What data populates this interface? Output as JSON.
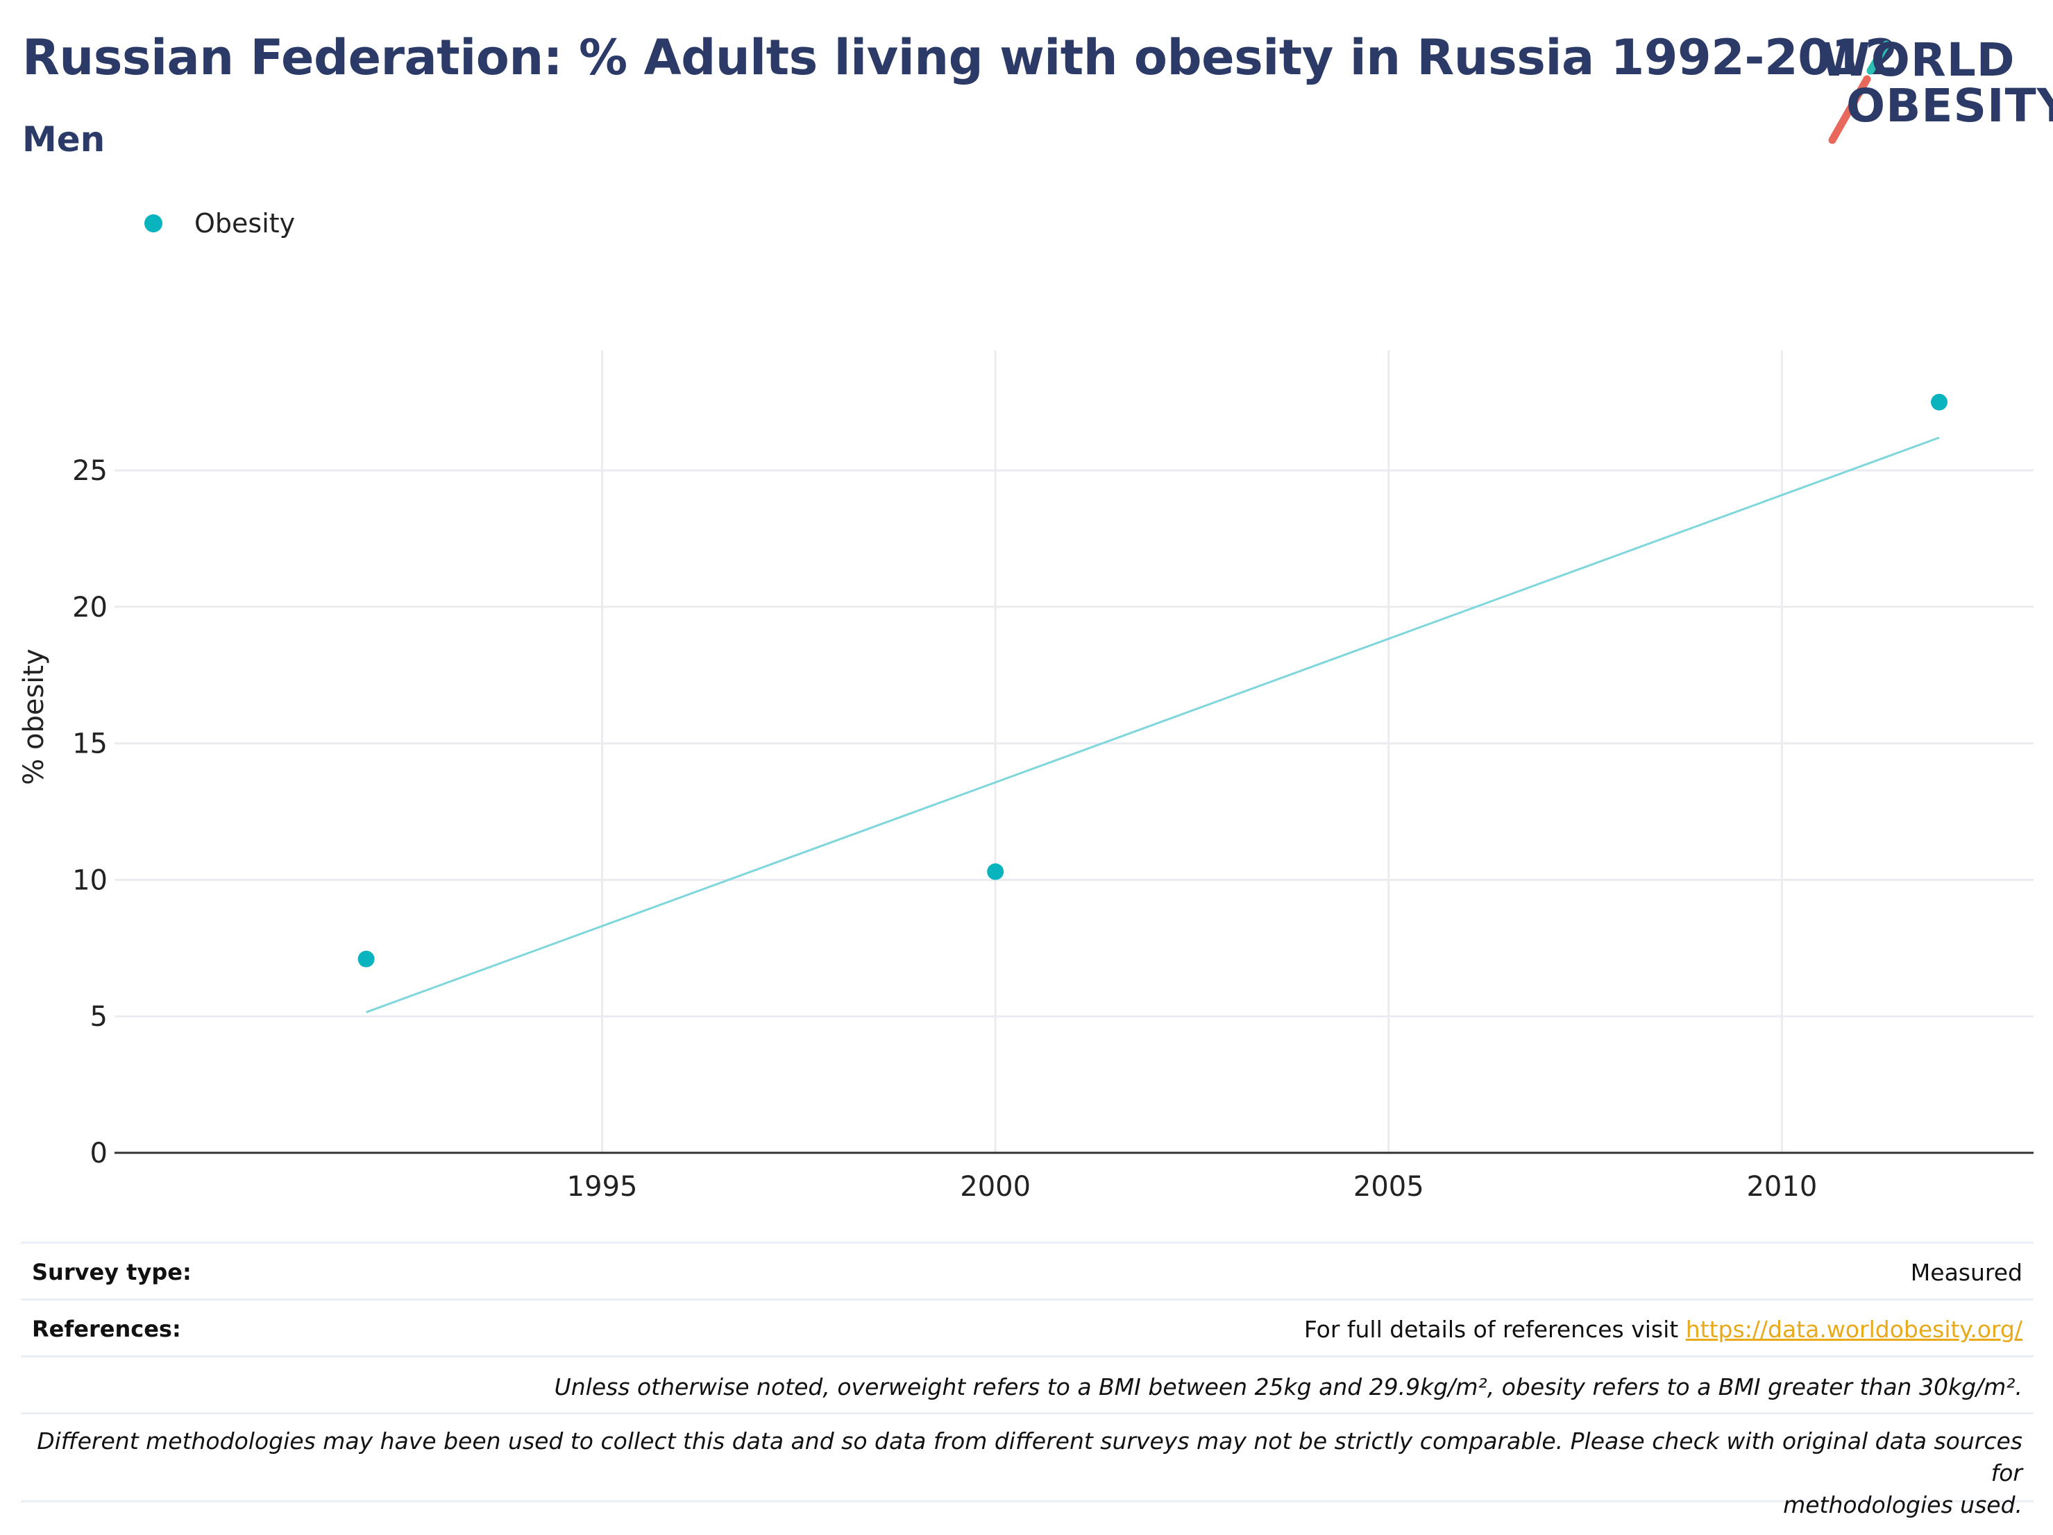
{
  "header": {
    "title": "Russian Federation: % Adults living with obesity in Russia 1992-2012",
    "subtitle": "Men"
  },
  "logo": {
    "line1": "WORLD",
    "line2": "OBESITY",
    "accent_teal": "#2bbfb3",
    "accent_red": "#e8695b"
  },
  "legend": {
    "items": [
      {
        "label": "Obesity",
        "color": "#0ab4be"
      }
    ]
  },
  "chart_data": {
    "type": "scatter",
    "title": "Russian Federation: % Adults living with obesity in Russia 1992-2012",
    "subtitle": "Men",
    "xlabel": "",
    "ylabel": "% obesity",
    "x_ticks": [
      1995,
      2000,
      2005,
      2010
    ],
    "y_ticks": [
      0,
      5,
      10,
      15,
      20,
      25
    ],
    "xlim": [
      1988.8,
      2013.2
    ],
    "ylim": [
      0,
      29.4
    ],
    "grid": true,
    "legend_position": "top-left",
    "series": [
      {
        "name": "Obesity",
        "color": "#0ab4be",
        "points": [
          {
            "x": 1992,
            "y": 7.1
          },
          {
            "x": 2000,
            "y": 10.3
          },
          {
            "x": 2012,
            "y": 27.5
          }
        ]
      }
    ],
    "trendline": {
      "color": "#7fd7dc",
      "points": [
        {
          "x": 1992,
          "y": 5.15
        },
        {
          "x": 2012,
          "y": 26.2
        }
      ]
    }
  },
  "footer": {
    "survey_type_label": "Survey type:",
    "survey_type_value": "Measured",
    "references_label": "References:",
    "references_text": "For full details of references visit ",
    "references_link": "https://data.worldobesity.org/",
    "note1": "Unless otherwise noted, overweight refers to a BMI between 25kg and 29.9kg/m², obesity refers to a BMI greater than 30kg/m².",
    "note2_line1": "Different methodologies may have been used to collect this data and so data from different surveys may not be strictly comparable. Please check with original data sources for",
    "note2_line2": "methodologies used."
  }
}
